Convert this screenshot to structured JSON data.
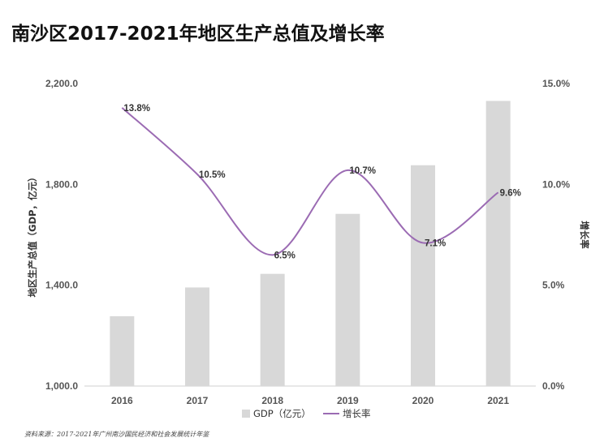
{
  "title": "南沙区2017-2021年地区生产总值及增长率",
  "source": "资料来源：2017-2021年广州南沙国民经济和社会发展统计年鉴",
  "colors": {
    "bar": "#d8d8d8",
    "line": "#9b6bb3",
    "axis_text": "#555555",
    "label_text": "#333333"
  },
  "chart_data": {
    "type": "bar",
    "categories": [
      "2016",
      "2017",
      "2018",
      "2019",
      "2020",
      "2021"
    ],
    "series": [
      {
        "name": "GDP（亿元）",
        "type": "bar",
        "axis": "left",
        "values": [
          1277,
          1391,
          1445,
          1683,
          1876,
          2131
        ]
      },
      {
        "name": "增长率",
        "type": "line",
        "axis": "right",
        "values": [
          13.8,
          10.5,
          6.5,
          10.7,
          7.1,
          9.6
        ],
        "labels": [
          "13.8%",
          "10.5%",
          "6.5%",
          "10.7%",
          "7.1%",
          "9.6%"
        ]
      }
    ],
    "ylabel": "地区生产总值（GDP，亿元）",
    "y2label": "增长率",
    "ylim": [
      1000,
      2200
    ],
    "y2lim": [
      0,
      15
    ],
    "yticks": [
      "1,000.0",
      "1,400.0",
      "1,800.0",
      "2,200.0"
    ],
    "y2ticks": [
      "0.0%",
      "5.0%",
      "10.0%",
      "15.0%"
    ],
    "grid": false,
    "legend": "bottom"
  }
}
